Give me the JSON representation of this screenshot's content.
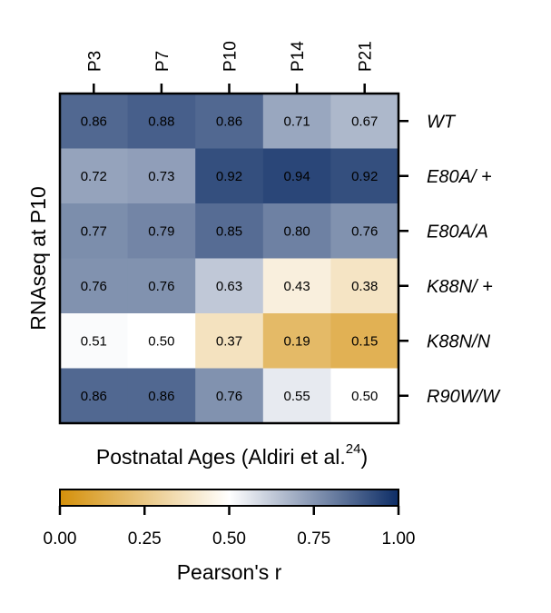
{
  "chart_data": {
    "type": "heatmap",
    "x_categories": [
      "P3",
      "P7",
      "P10",
      "P14",
      "P21"
    ],
    "y_categories": [
      "WT",
      "E80A/ +",
      "E80A/A",
      "K88N/ +",
      "K88N/N",
      "R90W/W"
    ],
    "values": [
      [
        0.86,
        0.88,
        0.86,
        0.71,
        0.67
      ],
      [
        0.72,
        0.73,
        0.92,
        0.94,
        0.92
      ],
      [
        0.77,
        0.79,
        0.85,
        0.8,
        0.76
      ],
      [
        0.76,
        0.76,
        0.63,
        0.43,
        0.38
      ],
      [
        0.51,
        0.5,
        0.37,
        0.19,
        0.15
      ],
      [
        0.86,
        0.86,
        0.76,
        0.55,
        0.5
      ]
    ],
    "cell_labels": [
      [
        "0.86",
        "0.88",
        "0.86",
        "0.71",
        "0.67"
      ],
      [
        "0.72",
        "0.73",
        "0.92",
        "0.94",
        "0.92"
      ],
      [
        "0.77",
        "0.79",
        "0.85",
        "0.80",
        "0.76"
      ],
      [
        "0.76",
        "0.76",
        "0.63",
        "0.43",
        "0.38"
      ],
      [
        "0.51",
        "0.50",
        "0.37",
        "0.19",
        "0.15"
      ],
      [
        "0.86",
        "0.86",
        "0.76",
        "0.55",
        "0.50"
      ]
    ],
    "ylabel": "RNAseq at P10",
    "xlabel": "Postnatal Ages (Aldiri et al.",
    "xlabel_superscript": "24",
    "xlabel_close": ")",
    "x_axis_position": "top",
    "y_axis_position": "right",
    "colorbar": {
      "label": "Pearson's r",
      "range": [
        0,
        1
      ],
      "ticks": [
        0,
        0.25,
        0.5,
        0.75,
        1
      ],
      "tick_labels": [
        "0.00",
        "0.25",
        "0.50",
        "0.75",
        "1.00"
      ],
      "colors": {
        "low": "#d4900a",
        "mid": "#ffffff",
        "high": "#0d2d66"
      },
      "placement": "bottom"
    }
  }
}
